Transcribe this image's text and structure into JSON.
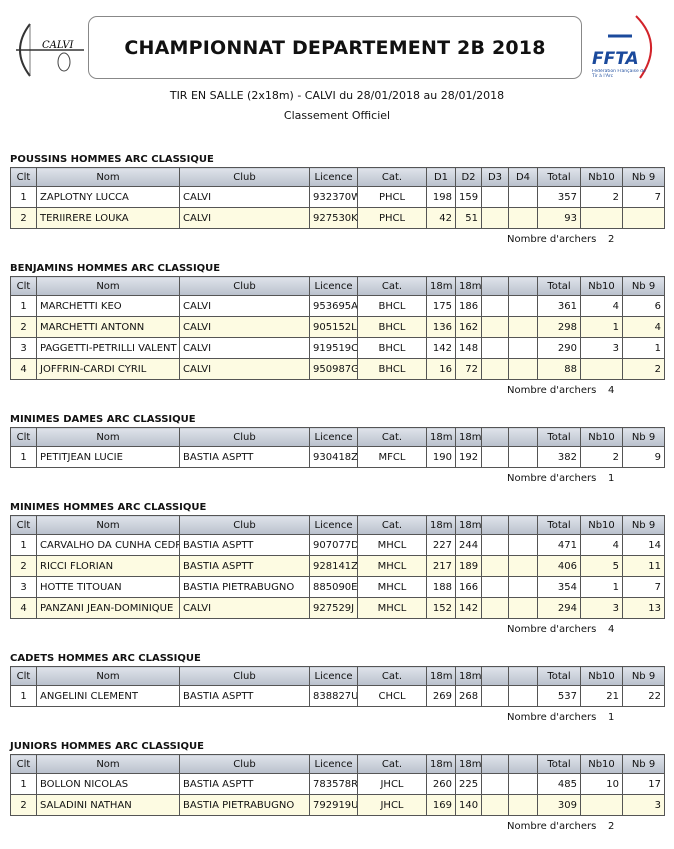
{
  "header": {
    "logo_left": "CALVI",
    "title": "CHAMPIONNAT DEPARTEMENT 2B 2018",
    "subtitle": "TIR EN SALLE (2x18m) - CALVI du 28/01/2018 au 28/01/2018",
    "subtitle2": "Classement Officiel",
    "logo_right": "FFTA",
    "logo_right_caption": "Fédération Française de Tir à l'Arc"
  },
  "sections": [
    {
      "title": "POUSSINS HOMMES ARC CLASSIQUE",
      "columns": [
        "Clt",
        "Nom",
        "Club",
        "Licence",
        "Cat.",
        "D1",
        "D2",
        "D3",
        "D4",
        "Total",
        "Nb10",
        "Nb 9"
      ],
      "rows": [
        [
          1,
          "ZAPLOTNY LUCCA",
          "CALVI",
          "932370W",
          "PHCL",
          198,
          159,
          null,
          null,
          357,
          2,
          7
        ],
        [
          2,
          "TERIIRERE LOUKA",
          "CALVI",
          "927530K",
          "PHCL",
          42,
          51,
          null,
          null,
          93,
          null,
          null
        ]
      ],
      "count_label": "Nombre d'archers",
      "count": 2
    },
    {
      "title": "BENJAMINS HOMMES ARC CLASSIQUE",
      "columns": [
        "Clt",
        "Nom",
        "Club",
        "Licence",
        "Cat.",
        "18m",
        "18m",
        null,
        null,
        "Total",
        "Nb10",
        "Nb 9"
      ],
      "rows": [
        [
          1,
          "MARCHETTI KEO",
          "CALVI",
          "953695A",
          "BHCL",
          175,
          186,
          null,
          null,
          361,
          4,
          6
        ],
        [
          2,
          "MARCHETTI ANTONN",
          "CALVI",
          "905152L",
          "BHCL",
          136,
          162,
          null,
          null,
          298,
          1,
          4
        ],
        [
          3,
          "PAGGETTI-PETRILLI VALENT",
          "CALVI",
          "919519C",
          "BHCL",
          142,
          148,
          null,
          null,
          290,
          3,
          1
        ],
        [
          4,
          "JOFFRIN-CARDI CYRIL",
          "CALVI",
          "950987G",
          "BHCL",
          16,
          72,
          null,
          null,
          88,
          null,
          2
        ]
      ],
      "count_label": "Nombre d'archers",
      "count": 4
    },
    {
      "title": "MINIMES DAMES ARC CLASSIQUE",
      "columns": [
        "Clt",
        "Nom",
        "Club",
        "Licence",
        "Cat.",
        "18m",
        "18m",
        null,
        null,
        "Total",
        "Nb10",
        "Nb 9"
      ],
      "rows": [
        [
          1,
          "PETITJEAN LUCIE",
          "BASTIA ASPTT",
          "930418Z",
          "MFCL",
          190,
          192,
          null,
          null,
          382,
          2,
          9
        ]
      ],
      "count_label": "Nombre d'archers",
      "count": 1
    },
    {
      "title": "MINIMES HOMMES ARC CLASSIQUE",
      "columns": [
        "Clt",
        "Nom",
        "Club",
        "Licence",
        "Cat.",
        "18m",
        "18m",
        null,
        null,
        "Total",
        "Nb10",
        "Nb 9"
      ],
      "rows": [
        [
          1,
          "CARVALHO DA CUNHA CEDR",
          "BASTIA ASPTT",
          "907077D",
          "MHCL",
          227,
          244,
          null,
          null,
          471,
          4,
          14
        ],
        [
          2,
          "RICCI FLORIAN",
          "BASTIA ASPTT",
          "928141Z",
          "MHCL",
          217,
          189,
          null,
          null,
          406,
          5,
          11
        ],
        [
          3,
          "HOTTE TITOUAN",
          "BASTIA PIETRABUGNO",
          "885090E",
          "MHCL",
          188,
          166,
          null,
          null,
          354,
          1,
          7
        ],
        [
          4,
          "PANZANI JEAN-DOMINIQUE",
          "CALVI",
          "927529J",
          "MHCL",
          152,
          142,
          null,
          null,
          294,
          3,
          13
        ]
      ],
      "count_label": "Nombre d'archers",
      "count": 4
    },
    {
      "title": "CADETS HOMMES ARC CLASSIQUE",
      "columns": [
        "Clt",
        "Nom",
        "Club",
        "Licence",
        "Cat.",
        "18m",
        "18m",
        null,
        null,
        "Total",
        "Nb10",
        "Nb 9"
      ],
      "rows": [
        [
          1,
          "ANGELINI CLEMENT",
          "BASTIA ASPTT",
          "838827U",
          "CHCL",
          269,
          268,
          null,
          null,
          537,
          21,
          22
        ]
      ],
      "count_label": "Nombre d'archers",
      "count": 1
    },
    {
      "title": "JUNIORS HOMMES ARC CLASSIQUE",
      "columns": [
        "Clt",
        "Nom",
        "Club",
        "Licence",
        "Cat.",
        "18m",
        "18m",
        null,
        null,
        "Total",
        "Nb10",
        "Nb 9"
      ],
      "rows": [
        [
          1,
          "BOLLON NICOLAS",
          "BASTIA ASPTT",
          "783578R",
          "JHCL",
          260,
          225,
          null,
          null,
          485,
          10,
          17
        ],
        [
          2,
          "SALADINI NATHAN",
          "BASTIA PIETRABUGNO",
          "792919U",
          "JHCL",
          169,
          140,
          null,
          null,
          309,
          null,
          3
        ]
      ],
      "count_label": "Nombre d'archers",
      "count": 2
    }
  ]
}
